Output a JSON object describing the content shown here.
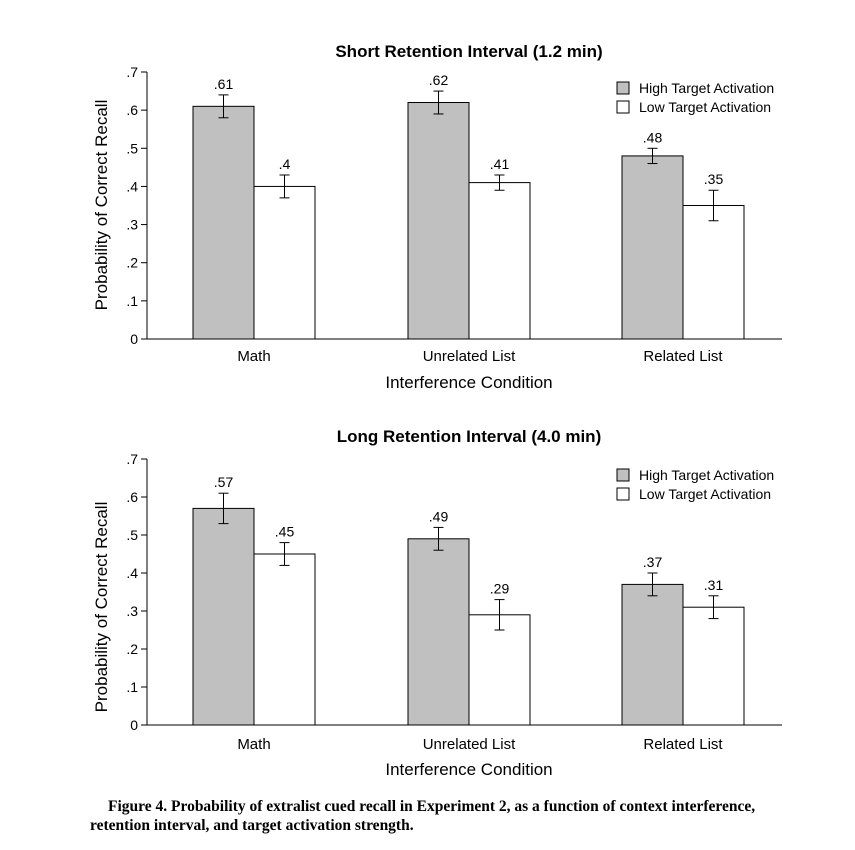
{
  "chart_data": [
    {
      "type": "bar",
      "title": "Short Retention Interval (1.2 min)",
      "xlabel": "Interference Condition",
      "ylabel": "Probability of Correct Recall",
      "ylim": [
        0,
        0.7
      ],
      "yticks": [
        "0",
        ".1",
        ".2",
        ".3",
        ".4",
        ".5",
        ".6",
        ".7"
      ],
      "categories": [
        "Math",
        "Unrelated List",
        "Related List"
      ],
      "legend_position": "top-right",
      "series": [
        {
          "name": "High Target Activation",
          "color": "#c0c0c0",
          "values": [
            0.61,
            0.62,
            0.48
          ],
          "labels": [
            ".61",
            ".62",
            ".48"
          ],
          "errors": [
            0.03,
            0.03,
            0.02
          ]
        },
        {
          "name": "Low Target Activation",
          "color": "#ffffff",
          "values": [
            0.4,
            0.41,
            0.35
          ],
          "labels": [
            ".4",
            ".41",
            ".35"
          ],
          "errors": [
            0.03,
            0.02,
            0.04
          ]
        }
      ]
    },
    {
      "type": "bar",
      "title": "Long Retention Interval (4.0 min)",
      "xlabel": "Interference Condition",
      "ylabel": "Probability of Correct Recall",
      "ylim": [
        0,
        0.7
      ],
      "yticks": [
        "0",
        ".1",
        ".2",
        ".3",
        ".4",
        ".5",
        ".6",
        ".7"
      ],
      "categories": [
        "Math",
        "Unrelated List",
        "Related List"
      ],
      "legend_position": "top-right",
      "series": [
        {
          "name": "High Target Activation",
          "color": "#c0c0c0",
          "values": [
            0.57,
            0.49,
            0.37
          ],
          "labels": [
            ".57",
            ".49",
            ".37"
          ],
          "errors": [
            0.04,
            0.03,
            0.03
          ]
        },
        {
          "name": "Low Target Activation",
          "color": "#ffffff",
          "values": [
            0.45,
            0.29,
            0.31
          ],
          "labels": [
            ".45",
            ".29",
            ".31"
          ],
          "errors": [
            0.03,
            0.04,
            0.03
          ]
        }
      ]
    }
  ],
  "caption": "Figure 4. Probability of extralist cued recall in Experiment 2, as a function of context interference, retention interval, and target activation strength."
}
